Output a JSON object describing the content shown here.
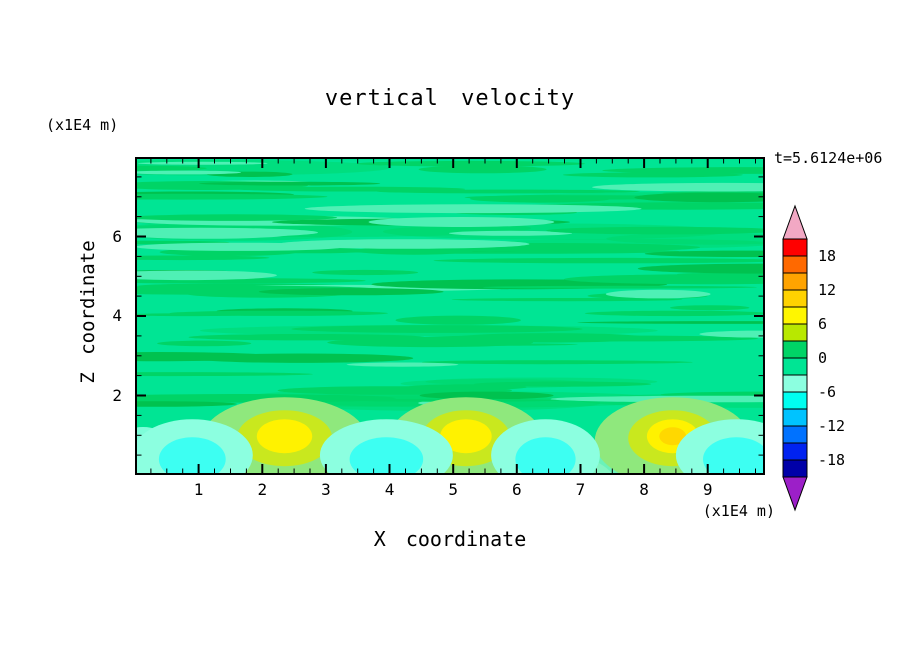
{
  "title": "vertical velocity",
  "timestamp": "t=5.6124e+06",
  "axes": {
    "x_label": "X coordinate",
    "y_label": "Z coordinate",
    "x_unit_label": "(x1E4 m)",
    "y_unit_label": "(x1E4 m)",
    "x_min": 0,
    "x_max": 9.9,
    "y_min": 0,
    "y_max": 8,
    "x_major_ticks": [
      1,
      2,
      3,
      4,
      5,
      6,
      7,
      8,
      9
    ],
    "x_tick_labels": [
      "1",
      "2",
      "3",
      "4",
      "5",
      "6",
      "7",
      "8",
      "9"
    ],
    "x_minor_step": 0.25,
    "y_major_ticks": [
      2,
      4,
      6
    ],
    "y_tick_labels": [
      "2",
      "4",
      "6"
    ],
    "y_minor_step": 0.5
  },
  "colorbar": {
    "labels_top_to_bottom": [
      "18",
      "12",
      "6",
      "0",
      "-6",
      "-12",
      "-18"
    ],
    "level_step": 3,
    "over_color": "#F2A8C4",
    "under_color": "#9C1FC8",
    "segments_top_to_bottom": [
      "#FF0000",
      "#FF6900",
      "#FFA300",
      "#FFD200",
      "#FFF600",
      "#B8E800",
      "#00D466",
      "#00E594",
      "#8CFFE0",
      "#00FFF0",
      "#00C3FF",
      "#0072FF",
      "#0022F0",
      "#0000A8"
    ]
  },
  "field": {
    "background_color": "#00E594",
    "streak_color_dark": "#00D466",
    "streak_color_darker": "#00C24F",
    "streak_color_light": "#4FF0B5",
    "bottom_pale_color": "#8DF5C6",
    "plume_ring_colors": [
      "#8FE87D",
      "#C9E81E",
      "#FFF200"
    ],
    "plume_core_hot": "#FFD800",
    "downdraft_colors": [
      "#8CFFE0",
      "#3DFFF2"
    ]
  },
  "chart_data": {
    "type": "heatmap",
    "title": "vertical velocity",
    "xlabel": "X coordinate (x1E4 m)",
    "ylabel": "Z coordinate (x1E4 m)",
    "annotation": "t=5.6124e+06",
    "x_range": [
      0,
      9.9
    ],
    "y_range": [
      0,
      8
    ],
    "contour_levels": [
      -18,
      -15,
      -12,
      -9,
      -6,
      -3,
      0,
      3,
      6,
      9,
      12,
      15,
      18
    ],
    "colorbar_tick_labels": [
      18,
      12,
      6,
      0,
      -6,
      -12,
      -18
    ],
    "background_value_range": [
      -3,
      3
    ],
    "description": "Weak vertical velocity (|w| < 3) fills most of the domain as a spring-green field crossed by thin darker horizontal streak bands aloft; a shallow convective layer below z ~ 2 contains three strong updraft plumes (yellow cores ~ +9 to +12) separated by cyan downdraft pockets (~ -6).",
    "features": [
      {
        "kind": "updraft",
        "x": 2.35,
        "z": 0.95,
        "peak_value": 9,
        "half_width": 0.75
      },
      {
        "kind": "updraft",
        "x": 5.2,
        "z": 0.95,
        "peak_value": 9,
        "half_width": 0.7
      },
      {
        "kind": "updraft",
        "x": 8.45,
        "z": 0.95,
        "peak_value": 12,
        "half_width": 0.7
      },
      {
        "kind": "downdraft",
        "x": 0.9,
        "z": 0.7,
        "peak_value": -6,
        "half_width": 0.5
      },
      {
        "kind": "downdraft",
        "x": 3.95,
        "z": 0.7,
        "peak_value": -6,
        "half_width": 0.55
      },
      {
        "kind": "downdraft",
        "x": 6.45,
        "z": 0.7,
        "peak_value": -6,
        "half_width": 0.45
      },
      {
        "kind": "downdraft",
        "x": 9.45,
        "z": 0.7,
        "peak_value": -6,
        "half_width": 0.5
      }
    ]
  }
}
